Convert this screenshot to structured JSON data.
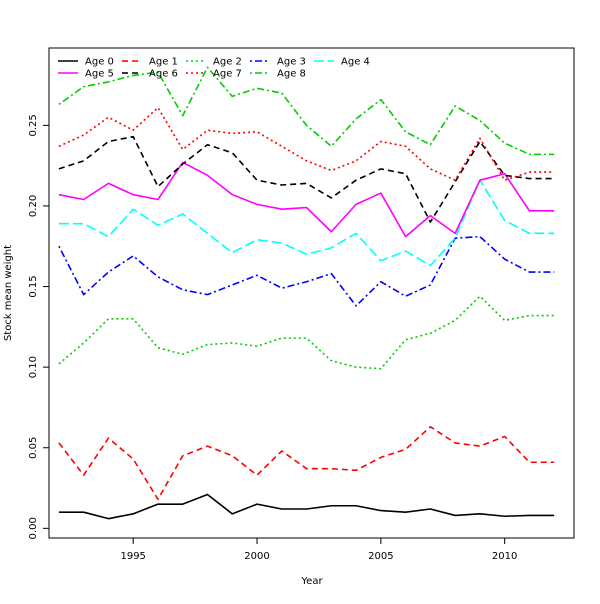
{
  "chart_data": {
    "type": "line",
    "title": "",
    "xlabel": "Year",
    "ylabel": "Stock mean weight",
    "xlim": [
      1991.6,
      2012.8
    ],
    "ylim": [
      -0.006,
      0.298
    ],
    "x_ticks": [
      1995,
      2000,
      2005,
      2010
    ],
    "y_ticks": [
      0.0,
      0.05,
      0.1,
      0.15,
      0.2,
      0.25
    ],
    "y_tick_labels": [
      "0.00",
      "0.05",
      "0.10",
      "0.15",
      "0.20",
      "0.25"
    ],
    "grid": false,
    "legend_position": "top-left",
    "x": [
      1992,
      1993,
      1994,
      1995,
      1996,
      1997,
      1998,
      1999,
      2000,
      2001,
      2002,
      2003,
      2004,
      2005,
      2006,
      2007,
      2008,
      2009,
      2010,
      2011,
      2012
    ],
    "series": [
      {
        "name": "Age 0",
        "color": "#000000",
        "dash": "solid",
        "values": [
          0.01,
          0.01,
          0.006,
          0.009,
          0.015,
          0.015,
          0.021,
          0.009,
          0.015,
          0.012,
          0.012,
          0.014,
          0.014,
          0.011,
          0.01,
          0.012,
          0.008,
          0.009,
          0.0075,
          0.008,
          0.008
        ]
      },
      {
        "name": "Age 1",
        "color": "#ff0000",
        "dash": "dashed",
        "values": [
          0.053,
          0.033,
          0.056,
          0.043,
          0.018,
          0.045,
          0.051,
          0.045,
          0.033,
          0.048,
          0.037,
          0.037,
          0.036,
          0.044,
          0.049,
          0.063,
          0.053,
          0.051,
          0.057,
          0.041,
          0.041
        ]
      },
      {
        "name": "Age 2",
        "color": "#00cd00",
        "dash": "dotted",
        "values": [
          0.102,
          0.115,
          0.13,
          0.13,
          0.112,
          0.108,
          0.114,
          0.115,
          0.113,
          0.118,
          0.118,
          0.104,
          0.1,
          0.099,
          0.117,
          0.121,
          0.129,
          0.144,
          0.129,
          0.132,
          0.132
        ]
      },
      {
        "name": "Age 3",
        "color": "#0000ff",
        "dash": "dotdash",
        "values": [
          0.175,
          0.145,
          0.159,
          0.169,
          0.156,
          0.148,
          0.145,
          0.151,
          0.157,
          0.149,
          0.153,
          0.158,
          0.138,
          0.153,
          0.144,
          0.151,
          0.18,
          0.181,
          0.167,
          0.159,
          0.159
        ]
      },
      {
        "name": "Age 4",
        "color": "#00ffff",
        "dash": "longdash",
        "values": [
          0.189,
          0.189,
          0.181,
          0.198,
          0.188,
          0.195,
          0.183,
          0.171,
          0.179,
          0.177,
          0.17,
          0.174,
          0.183,
          0.166,
          0.172,
          0.163,
          0.18,
          0.216,
          0.191,
          0.183,
          0.183
        ]
      },
      {
        "name": "Age 5",
        "color": "#ff00ff",
        "dash": "solid",
        "values": [
          0.207,
          0.204,
          0.214,
          0.207,
          0.204,
          0.227,
          0.219,
          0.207,
          0.201,
          0.198,
          0.199,
          0.184,
          0.201,
          0.208,
          0.181,
          0.194,
          0.183,
          0.216,
          0.22,
          0.197,
          0.197
        ]
      },
      {
        "name": "Age 6",
        "color": "#000000",
        "dash": "dashed",
        "values": [
          0.223,
          0.228,
          0.24,
          0.243,
          0.212,
          0.226,
          0.238,
          0.233,
          0.216,
          0.213,
          0.214,
          0.205,
          0.216,
          0.223,
          0.22,
          0.19,
          0.215,
          0.24,
          0.219,
          0.217,
          0.217
        ]
      },
      {
        "name": "Age 7",
        "color": "#ff0000",
        "dash": "dotted",
        "values": [
          0.237,
          0.244,
          0.255,
          0.247,
          0.261,
          0.235,
          0.247,
          0.245,
          0.246,
          0.237,
          0.228,
          0.222,
          0.228,
          0.24,
          0.237,
          0.223,
          0.216,
          0.242,
          0.216,
          0.221,
          0.221
        ]
      },
      {
        "name": "Age 8",
        "color": "#00cd00",
        "dash": "dotdash",
        "values": [
          0.263,
          0.274,
          0.277,
          0.281,
          0.283,
          0.256,
          0.286,
          0.268,
          0.273,
          0.27,
          0.25,
          0.237,
          0.254,
          0.266,
          0.246,
          0.238,
          0.262,
          0.253,
          0.239,
          0.232,
          0.232
        ]
      }
    ]
  }
}
